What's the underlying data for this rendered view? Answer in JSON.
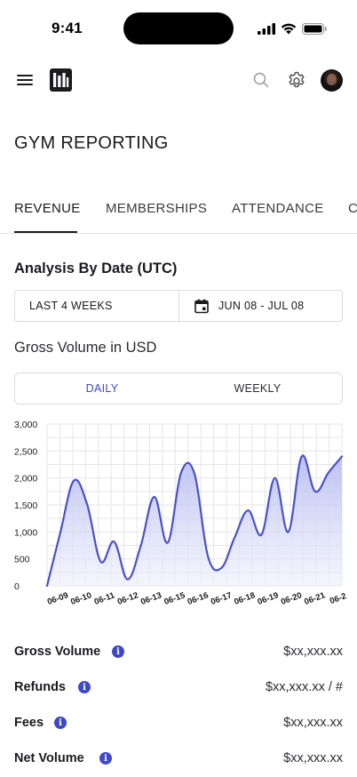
{
  "status_bar": {
    "time": "9:41"
  },
  "header": {
    "menu_icon": "hamburger-icon",
    "logo_icon": "brand-logo",
    "search_icon": "search-icon",
    "settings_icon": "gear-icon",
    "avatar": "user-avatar"
  },
  "page": {
    "title": "GYM REPORTING"
  },
  "tabs": [
    {
      "label": "REVENUE",
      "active": true
    },
    {
      "label": "MEMBERSHIPS"
    },
    {
      "label": "ATTENDANCE"
    },
    {
      "label": "C"
    }
  ],
  "analysis": {
    "title": "Analysis By Date (UTC)",
    "preset": "LAST 4 WEEKS",
    "date_range": "JUN 08 - JUL 08",
    "calendar_icon": "calendar-icon"
  },
  "chart_section": {
    "title": "Gross Volume in USD",
    "toggle": {
      "daily": "DAILY",
      "weekly": "WEEKLY",
      "selected": "DAILY"
    }
  },
  "chart_data": {
    "type": "area",
    "ylim": [
      0,
      3000
    ],
    "y_ticks": [
      "3,000",
      "2,500",
      "2,000",
      "1,500",
      "1,000",
      "500",
      "0"
    ],
    "x_ticks": [
      "06-09",
      "06-10",
      "06-11",
      "06-12",
      "06-13",
      "06-15",
      "06-16",
      "06-17",
      "06-18",
      "06-19",
      "06-20",
      "06-21",
      "06-2"
    ],
    "series": [
      {
        "values": [
          0,
          1000,
          1950,
          1500,
          450,
          820,
          120,
          750,
          1650,
          800,
          2100,
          2080,
          550,
          330,
          900,
          1400,
          950,
          2000,
          1000,
          2400,
          1750,
          2100,
          2400
        ]
      }
    ],
    "colors": {
      "line": "#4a52c9",
      "fill_top": "#b8bdf0",
      "fill_bottom": "#eceefb",
      "grid": "#e6e6ea"
    }
  },
  "metrics": [
    {
      "label": "Gross Volume",
      "value": "$xx,xxx.xx",
      "info_icon": "info-icon"
    },
    {
      "label": "Refunds",
      "value": "$xx,xxx.xx / #",
      "info_icon": "info-icon"
    },
    {
      "label": "Fees",
      "value": "$xx,xxx.xx",
      "info_icon": "info-icon"
    },
    {
      "label": "Net Volume",
      "value": "$xx,xxx.xx",
      "info_icon": "info-icon"
    }
  ]
}
